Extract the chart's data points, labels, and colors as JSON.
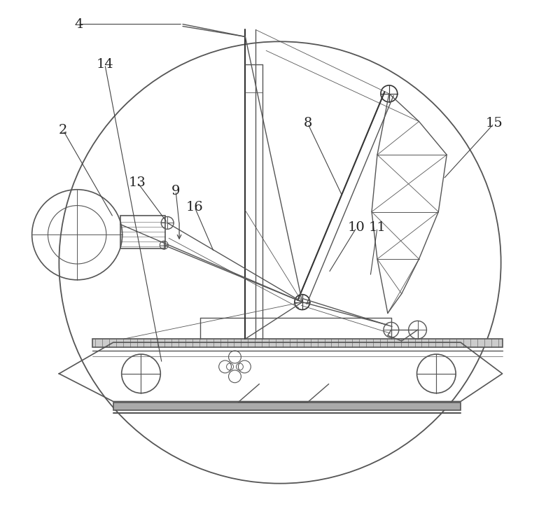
{
  "bg_color": "#ffffff",
  "lc": "#555555",
  "lcd": "#333333",
  "figsize": [
    8.0,
    7.5
  ],
  "dpi": 100
}
